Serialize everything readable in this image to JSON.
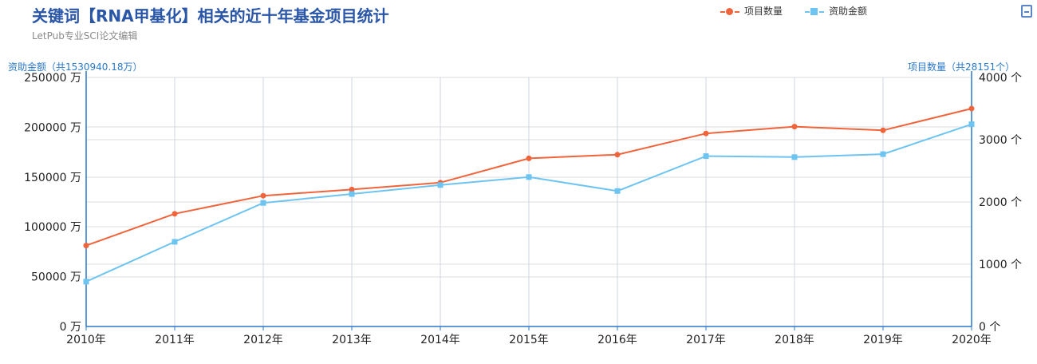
{
  "title": "关键词【RNA甲基化】相关的近十年基金项目统计",
  "subtitle": "LetPub专业SCI论文编辑",
  "legend": [
    {
      "label": "项目数量",
      "color": "#f0643c",
      "marker": "circle"
    },
    {
      "label": "资助金额",
      "color": "#6ec4f0",
      "marker": "square"
    }
  ],
  "left_axis_name": "资助金额（共1530940.18万）",
  "right_axis_name": "项目数量（共28151个）",
  "chart_data": {
    "type": "line",
    "categories": [
      "2010年",
      "2011年",
      "2012年",
      "2013年",
      "2014年",
      "2015年",
      "2016年",
      "2017年",
      "2018年",
      "2019年",
      "2020年"
    ],
    "series": [
      {
        "name": "项目数量",
        "axis": "right",
        "color": "#f0643c",
        "values": [
          1300,
          1810,
          2100,
          2200,
          2310,
          2700,
          2760,
          3100,
          3210,
          3150,
          3500
        ]
      },
      {
        "name": "资助金额",
        "axis": "left",
        "color": "#6ec4f0",
        "values": [
          45000,
          85000,
          124000,
          133000,
          142000,
          150000,
          136000,
          171000,
          170000,
          173000,
          203000
        ]
      }
    ],
    "y_left": {
      "min": 0,
      "max": 250000,
      "step": 50000,
      "unit": "万",
      "ticks": [
        "0 万",
        "50000 万",
        "100000 万",
        "150000 万",
        "200000 万",
        "250000 万"
      ]
    },
    "y_right": {
      "min": 0,
      "max": 4000,
      "step": 1000,
      "unit": "个",
      "ticks": [
        "0 个",
        "1000 个",
        "2000 个",
        "3000 个",
        "4000 个"
      ]
    },
    "grid": true
  }
}
